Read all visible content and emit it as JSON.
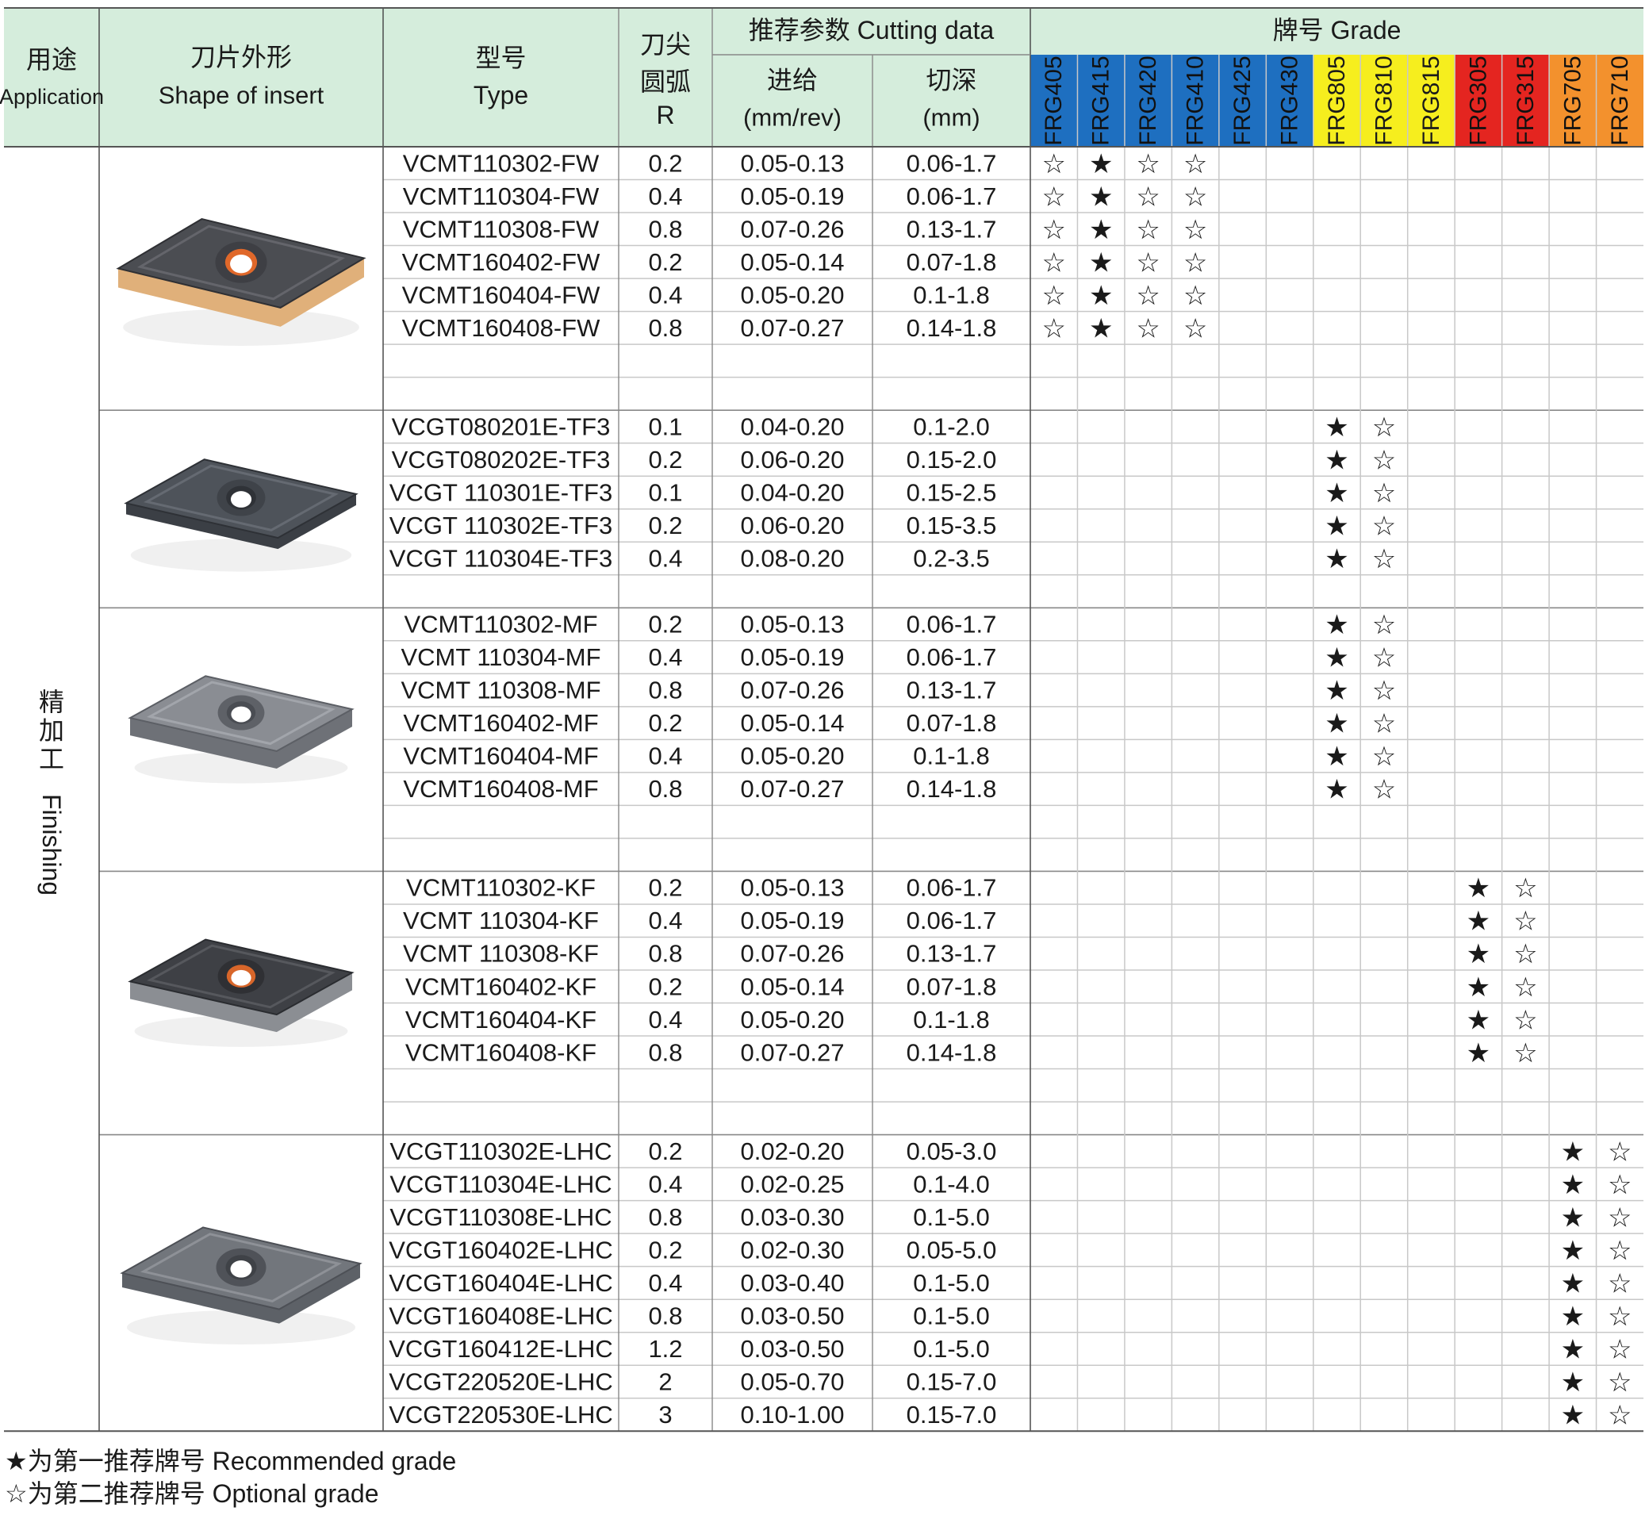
{
  "header": {
    "application_cn": "用途",
    "application_en": "Application",
    "shape_cn": "刀片外形",
    "shape_en": "Shape of insert",
    "type_cn": "型号",
    "type_en": "Type",
    "r_line1": "刀尖",
    "r_line2": "圆弧",
    "r_line3": "R",
    "cutting_title": "推荐参数 Cutting data",
    "feed_cn": "进给",
    "feed_unit": "(mm/rev)",
    "depth_cn": "切深",
    "depth_unit": "(mm)",
    "grade_title": "牌号 Grade"
  },
  "application_label": "精加工 Finishing",
  "grades": [
    {
      "name": "FRG405",
      "color": "#1e6fc0"
    },
    {
      "name": "FRG415",
      "color": "#1e6fc0"
    },
    {
      "name": "FRG420",
      "color": "#1e6fc0"
    },
    {
      "name": "FRG410",
      "color": "#1e6fc0"
    },
    {
      "name": "FRG425",
      "color": "#1e6fc0"
    },
    {
      "name": "FRG430",
      "color": "#1e6fc0"
    },
    {
      "name": "FRG805",
      "color": "#f6ee1e"
    },
    {
      "name": "FRG810",
      "color": "#f6ee1e"
    },
    {
      "name": "FRG815",
      "color": "#f6ee1e"
    },
    {
      "name": "FRG305",
      "color": "#e42520"
    },
    {
      "name": "FRG315",
      "color": "#e42520"
    },
    {
      "name": "FRG705",
      "color": "#f3912d"
    },
    {
      "name": "FRG710",
      "color": "#f3912d"
    }
  ],
  "colors": {
    "header_bg": "#d5eddc",
    "grid_line": "#c8c8c8",
    "frame_line": "#555555"
  },
  "groups": [
    {
      "insert_image": "insert-fw-gold-chipbreaker",
      "rows": [
        {
          "type": "VCMT110302-FW",
          "r": "0.2",
          "feed": "0.05-0.13",
          "depth": "0.06-1.7",
          "marks": {
            "0": "☆",
            "1": "★",
            "2": "☆",
            "3": "☆"
          }
        },
        {
          "type": "VCMT110304-FW",
          "r": "0.4",
          "feed": "0.05-0.19",
          "depth": "0.06-1.7",
          "marks": {
            "0": "☆",
            "1": "★",
            "2": "☆",
            "3": "☆"
          }
        },
        {
          "type": "VCMT110308-FW",
          "r": "0.8",
          "feed": "0.07-0.26",
          "depth": "0.13-1.7",
          "marks": {
            "0": "☆",
            "1": "★",
            "2": "☆",
            "3": "☆"
          }
        },
        {
          "type": "VCMT160402-FW",
          "r": "0.2",
          "feed": "0.05-0.14",
          "depth": "0.07-1.8",
          "marks": {
            "0": "☆",
            "1": "★",
            "2": "☆",
            "3": "☆"
          }
        },
        {
          "type": "VCMT160404-FW",
          "r": "0.4",
          "feed": "0.05-0.20",
          "depth": "0.1-1.8",
          "marks": {
            "0": "☆",
            "1": "★",
            "2": "☆",
            "3": "☆"
          }
        },
        {
          "type": "VCMT160408-FW",
          "r": "0.8",
          "feed": "0.07-0.27",
          "depth": "0.14-1.8",
          "marks": {
            "0": "☆",
            "1": "★",
            "2": "☆",
            "3": "☆"
          }
        },
        {
          "type": "",
          "r": "",
          "feed": "",
          "depth": "",
          "marks": {}
        },
        {
          "type": "",
          "r": "",
          "feed": "",
          "depth": "",
          "marks": {}
        }
      ]
    },
    {
      "insert_image": "insert-tf3-dark",
      "rows": [
        {
          "type": "VCGT080201E-TF3",
          "r": "0.1",
          "feed": "0.04-0.20",
          "depth": "0.1-2.0",
          "marks": {
            "6": "★",
            "7": "☆"
          }
        },
        {
          "type": "VCGT080202E-TF3",
          "r": "0.2",
          "feed": "0.06-0.20",
          "depth": "0.15-2.0",
          "marks": {
            "6": "★",
            "7": "☆"
          }
        },
        {
          "type": "VCGT 110301E-TF3",
          "r": "0.1",
          "feed": "0.04-0.20",
          "depth": "0.15-2.5",
          "marks": {
            "6": "★",
            "7": "☆"
          }
        },
        {
          "type": "VCGT 110302E-TF3",
          "r": "0.2",
          "feed": "0.06-0.20",
          "depth": "0.15-3.5",
          "marks": {
            "6": "★",
            "7": "☆"
          }
        },
        {
          "type": "VCGT 110304E-TF3",
          "r": "0.4",
          "feed": "0.08-0.20",
          "depth": "0.2-3.5",
          "marks": {
            "6": "★",
            "7": "☆"
          }
        },
        {
          "type": "",
          "r": "",
          "feed": "",
          "depth": "",
          "marks": {}
        }
      ]
    },
    {
      "insert_image": "insert-mf-grey",
      "rows": [
        {
          "type": "VCMT110302-MF",
          "r": "0.2",
          "feed": "0.05-0.13",
          "depth": "0.06-1.7",
          "marks": {
            "6": "★",
            "7": "☆"
          }
        },
        {
          "type": "VCMT 110304-MF",
          "r": "0.4",
          "feed": "0.05-0.19",
          "depth": "0.06-1.7",
          "marks": {
            "6": "★",
            "7": "☆"
          }
        },
        {
          "type": "VCMT 110308-MF",
          "r": "0.8",
          "feed": "0.07-0.26",
          "depth": "0.13-1.7",
          "marks": {
            "6": "★",
            "7": "☆"
          }
        },
        {
          "type": "VCMT160402-MF",
          "r": "0.2",
          "feed": "0.05-0.14",
          "depth": "0.07-1.8",
          "marks": {
            "6": "★",
            "7": "☆"
          }
        },
        {
          "type": "VCMT160404-MF",
          "r": "0.4",
          "feed": "0.05-0.20",
          "depth": "0.1-1.8",
          "marks": {
            "6": "★",
            "7": "☆"
          }
        },
        {
          "type": "VCMT160408-MF",
          "r": "0.8",
          "feed": "0.07-0.27",
          "depth": "0.14-1.8",
          "marks": {
            "6": "★",
            "7": "☆"
          }
        },
        {
          "type": "",
          "r": "",
          "feed": "",
          "depth": "",
          "marks": {}
        },
        {
          "type": "",
          "r": "",
          "feed": "",
          "depth": "",
          "marks": {}
        }
      ]
    },
    {
      "insert_image": "insert-kf-dark-orange",
      "rows": [
        {
          "type": "VCMT110302-KF",
          "r": "0.2",
          "feed": "0.05-0.13",
          "depth": "0.06-1.7",
          "marks": {
            "9": "★",
            "10": "☆"
          }
        },
        {
          "type": "VCMT 110304-KF",
          "r": "0.4",
          "feed": "0.05-0.19",
          "depth": "0.06-1.7",
          "marks": {
            "9": "★",
            "10": "☆"
          }
        },
        {
          "type": "VCMT 110308-KF",
          "r": "0.8",
          "feed": "0.07-0.26",
          "depth": "0.13-1.7",
          "marks": {
            "9": "★",
            "10": "☆"
          }
        },
        {
          "type": "VCMT160402-KF",
          "r": "0.2",
          "feed": "0.05-0.14",
          "depth": "0.07-1.8",
          "marks": {
            "9": "★",
            "10": "☆"
          }
        },
        {
          "type": "VCMT160404-KF",
          "r": "0.4",
          "feed": "0.05-0.20",
          "depth": "0.1-1.8",
          "marks": {
            "9": "★",
            "10": "☆"
          }
        },
        {
          "type": "VCMT160408-KF",
          "r": "0.8",
          "feed": "0.07-0.27",
          "depth": "0.14-1.8",
          "marks": {
            "9": "★",
            "10": "☆"
          }
        },
        {
          "type": "",
          "r": "",
          "feed": "",
          "depth": "",
          "marks": {}
        },
        {
          "type": "",
          "r": "",
          "feed": "",
          "depth": "",
          "marks": {}
        }
      ]
    },
    {
      "insert_image": "insert-lhc-grey",
      "rows": [
        {
          "type": "VCGT110302E-LHC",
          "r": "0.2",
          "feed": "0.02-0.20",
          "depth": "0.05-3.0",
          "marks": {
            "11": "★",
            "12": "☆"
          }
        },
        {
          "type": "VCGT110304E-LHC",
          "r": "0.4",
          "feed": "0.02-0.25",
          "depth": "0.1-4.0",
          "marks": {
            "11": "★",
            "12": "☆"
          }
        },
        {
          "type": "VCGT110308E-LHC",
          "r": "0.8",
          "feed": "0.03-0.30",
          "depth": "0.1-5.0",
          "marks": {
            "11": "★",
            "12": "☆"
          }
        },
        {
          "type": "VCGT160402E-LHC",
          "r": "0.2",
          "feed": "0.02-0.30",
          "depth": "0.05-5.0",
          "marks": {
            "11": "★",
            "12": "☆"
          }
        },
        {
          "type": "VCGT160404E-LHC",
          "r": "0.4",
          "feed": "0.03-0.40",
          "depth": "0.1-5.0",
          "marks": {
            "11": "★",
            "12": "☆"
          }
        },
        {
          "type": "VCGT160408E-LHC",
          "r": "0.8",
          "feed": "0.03-0.50",
          "depth": "0.1-5.0",
          "marks": {
            "11": "★",
            "12": "☆"
          }
        },
        {
          "type": "VCGT160412E-LHC",
          "r": "1.2",
          "feed": "0.03-0.50",
          "depth": "0.1-5.0",
          "marks": {
            "11": "★",
            "12": "☆"
          }
        },
        {
          "type": "VCGT220520E-LHC",
          "r": "2",
          "feed": "0.05-0.70",
          "depth": "0.15-7.0",
          "marks": {
            "11": "★",
            "12": "☆"
          }
        },
        {
          "type": "VCGT220530E-LHC",
          "r": "3",
          "feed": "0.10-1.00",
          "depth": "0.15-7.0",
          "marks": {
            "11": "★",
            "12": "☆"
          }
        }
      ]
    }
  ],
  "legend": {
    "recommended": "★为第一推荐牌号 Recommended grade",
    "optional": "☆为第二推荐牌号 Optional grade"
  }
}
